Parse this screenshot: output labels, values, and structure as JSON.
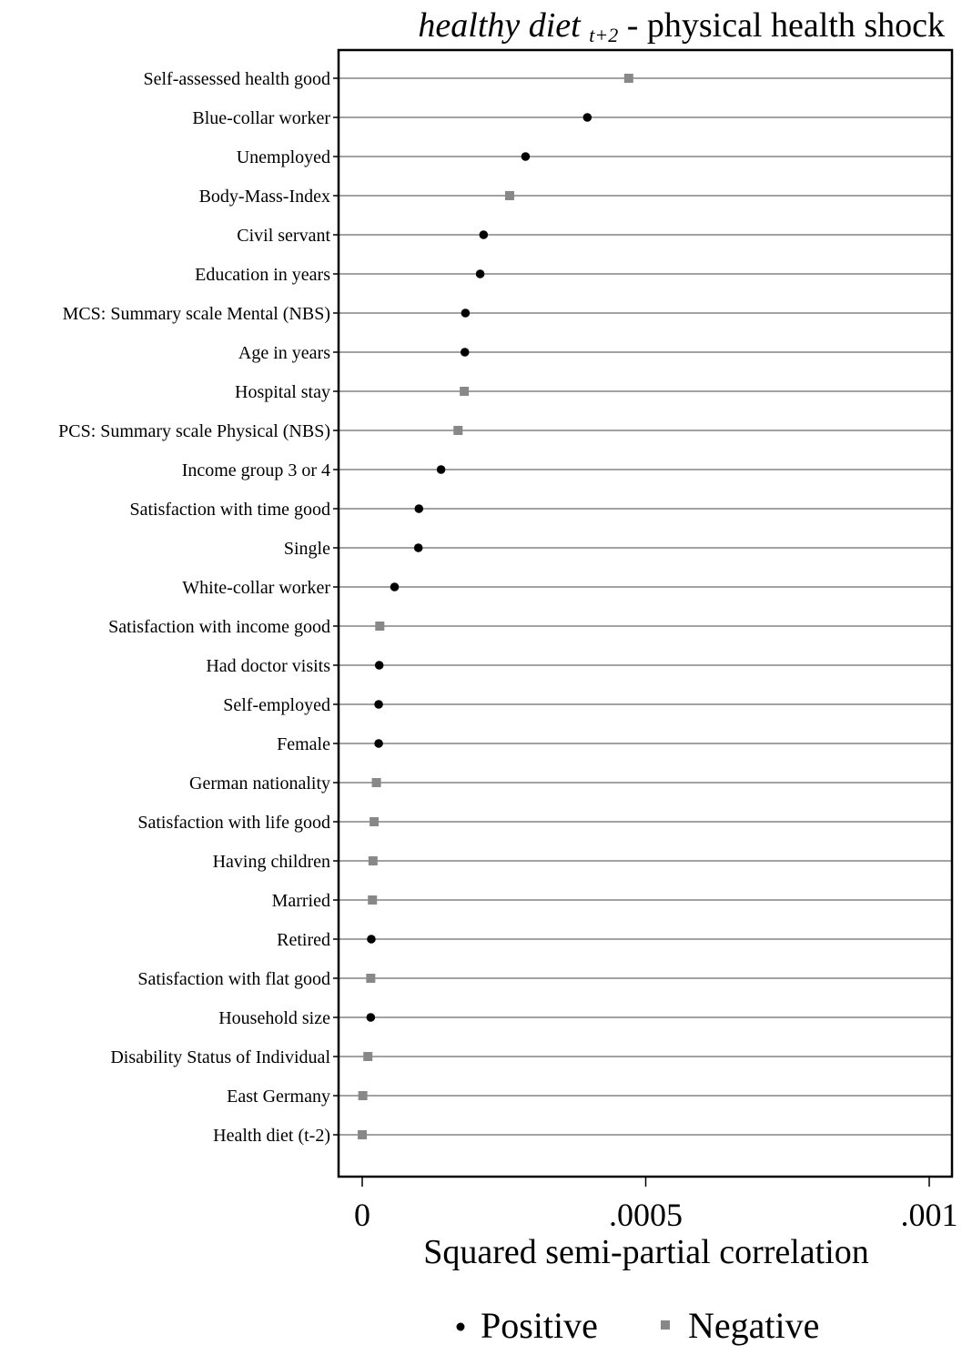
{
  "chart_data": {
    "type": "scatter",
    "title": {
      "main_italic": "healthy diet",
      "subscript": "t+2",
      "rest": " - physical health shock"
    },
    "xlabel": "Squared semi-partial correlation",
    "ylabel": "",
    "xlim": [
      -4e-05,
      0.001
    ],
    "xticks": [
      {
        "value": 0,
        "label": "0"
      },
      {
        "value": 0.0005,
        "label": ".0005"
      },
      {
        "value": 0.001,
        "label": ".001"
      }
    ],
    "grid": true,
    "legend": {
      "placement": "bottom",
      "entries": [
        {
          "key": "positive",
          "label": "Positive",
          "marker": "circle",
          "color": "#000000"
        },
        {
          "key": "negative",
          "label": "Negative",
          "marker": "square",
          "color": "#888888"
        }
      ]
    },
    "points": [
      {
        "label": "Self-assessed health good",
        "value": 0.00047,
        "sign": "negative"
      },
      {
        "label": "Blue-collar worker",
        "value": 0.000397,
        "sign": "positive"
      },
      {
        "label": "Unemployed",
        "value": 0.000288,
        "sign": "positive"
      },
      {
        "label": "Body-Mass-Index",
        "value": 0.00026,
        "sign": "negative"
      },
      {
        "label": "Civil servant",
        "value": 0.000214,
        "sign": "positive"
      },
      {
        "label": "Education in years",
        "value": 0.000208,
        "sign": "positive"
      },
      {
        "label": "MCS: Summary scale Mental (NBS)",
        "value": 0.000182,
        "sign": "positive"
      },
      {
        "label": "Age in years",
        "value": 0.000181,
        "sign": "positive"
      },
      {
        "label": "Hospital stay",
        "value": 0.00018,
        "sign": "negative"
      },
      {
        "label": "PCS: Summary scale Physical (NBS)",
        "value": 0.000169,
        "sign": "negative"
      },
      {
        "label": "Income group 3 or 4",
        "value": 0.000139,
        "sign": "positive"
      },
      {
        "label": "Satisfaction with time good",
        "value": 0.0001,
        "sign": "positive"
      },
      {
        "label": "Single",
        "value": 9.9e-05,
        "sign": "positive"
      },
      {
        "label": "White-collar worker",
        "value": 5.7e-05,
        "sign": "positive"
      },
      {
        "label": "Satisfaction with income good",
        "value": 3.1e-05,
        "sign": "negative"
      },
      {
        "label": "Had doctor visits",
        "value": 3e-05,
        "sign": "positive"
      },
      {
        "label": "Self-employed",
        "value": 2.9e-05,
        "sign": "positive"
      },
      {
        "label": "Female",
        "value": 2.9e-05,
        "sign": "positive"
      },
      {
        "label": "German nationality",
        "value": 2.5e-05,
        "sign": "negative"
      },
      {
        "label": "Satisfaction with life good",
        "value": 2.1e-05,
        "sign": "negative"
      },
      {
        "label": "Having children",
        "value": 1.9e-05,
        "sign": "negative"
      },
      {
        "label": "Married",
        "value": 1.8e-05,
        "sign": "negative"
      },
      {
        "label": "Retired",
        "value": 1.6e-05,
        "sign": "positive"
      },
      {
        "label": "Satisfaction with flat good",
        "value": 1.5e-05,
        "sign": "negative"
      },
      {
        "label": "Household size",
        "value": 1.5e-05,
        "sign": "positive"
      },
      {
        "label": "Disability Status of Individual",
        "value": 1e-05,
        "sign": "negative"
      },
      {
        "label": "East Germany",
        "value": 1e-06,
        "sign": "negative"
      },
      {
        "label": "Health diet (t-2)",
        "value": 0.0,
        "sign": "negative"
      }
    ]
  }
}
